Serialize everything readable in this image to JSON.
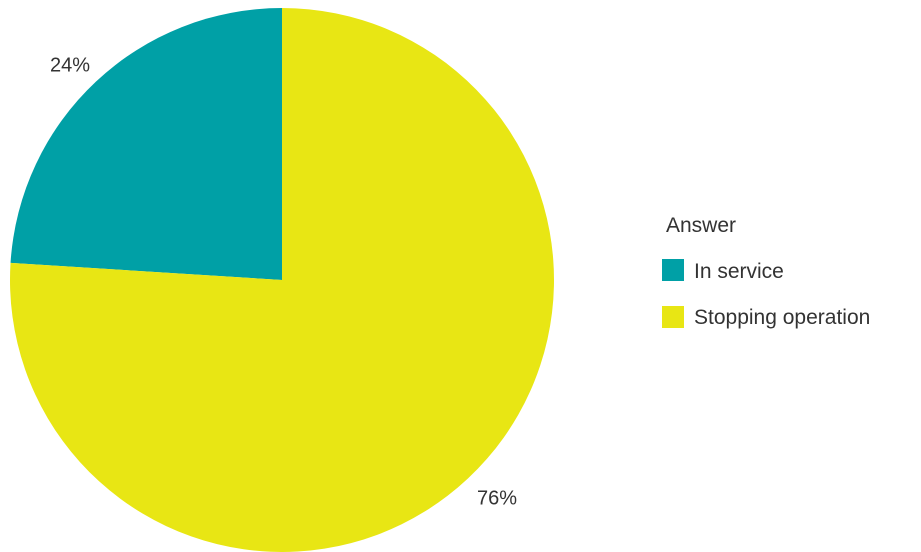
{
  "chart_data": {
    "type": "pie",
    "legend_title": "Answer",
    "legend_position": "right",
    "slices": [
      {
        "label": "In service",
        "value": 24,
        "value_label": "24%",
        "color": "#00A0A6"
      },
      {
        "label": "Stopping operation",
        "value": 76,
        "value_label": "76%",
        "color": "#E8E614"
      }
    ]
  }
}
